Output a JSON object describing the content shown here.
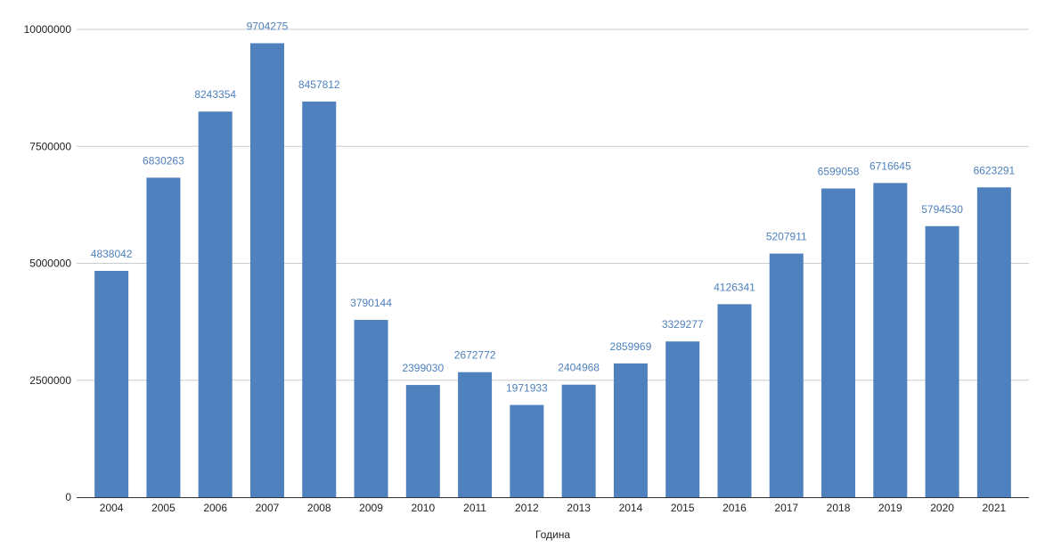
{
  "chart_data": {
    "type": "bar",
    "categories": [
      "2004",
      "2005",
      "2006",
      "2007",
      "2008",
      "2009",
      "2010",
      "2011",
      "2012",
      "2013",
      "2014",
      "2015",
      "2016",
      "2017",
      "2018",
      "2019",
      "2020",
      "2021"
    ],
    "series": [
      {
        "values": [
          4838042,
          6830263,
          8243354,
          9704275,
          8457812,
          3790144,
          2399030,
          2672772,
          1971933,
          2404968,
          2859969,
          3329277,
          4126341,
          5207911,
          6599058,
          6716645,
          5794530,
          6623291
        ],
        "color": "#4e81bd"
      }
    ],
    "data_labels": [
      "4838042",
      "6830263",
      "8243354",
      "9704275",
      "8457812",
      "3790144",
      "2399030",
      "2672772",
      "1971933",
      "2404968",
      "2859969",
      "3329277",
      "4126341",
      "5207911",
      "6599058",
      "6716645",
      "5794530",
      "6623291"
    ],
    "title": "",
    "xlabel": "Година",
    "ylabel": "",
    "ylim": [
      0,
      10000000
    ],
    "yticks": [
      0,
      2500000,
      5000000,
      7500000,
      10000000
    ],
    "ytick_labels": [
      "0",
      "2500000",
      "5000000",
      "7500000",
      "10000000"
    ],
    "grid": true,
    "legend": "none",
    "colors": {
      "bar": "#4e81bd",
      "label": "#4e81bd",
      "grid": "#cccccc",
      "axis": "#333333"
    }
  }
}
